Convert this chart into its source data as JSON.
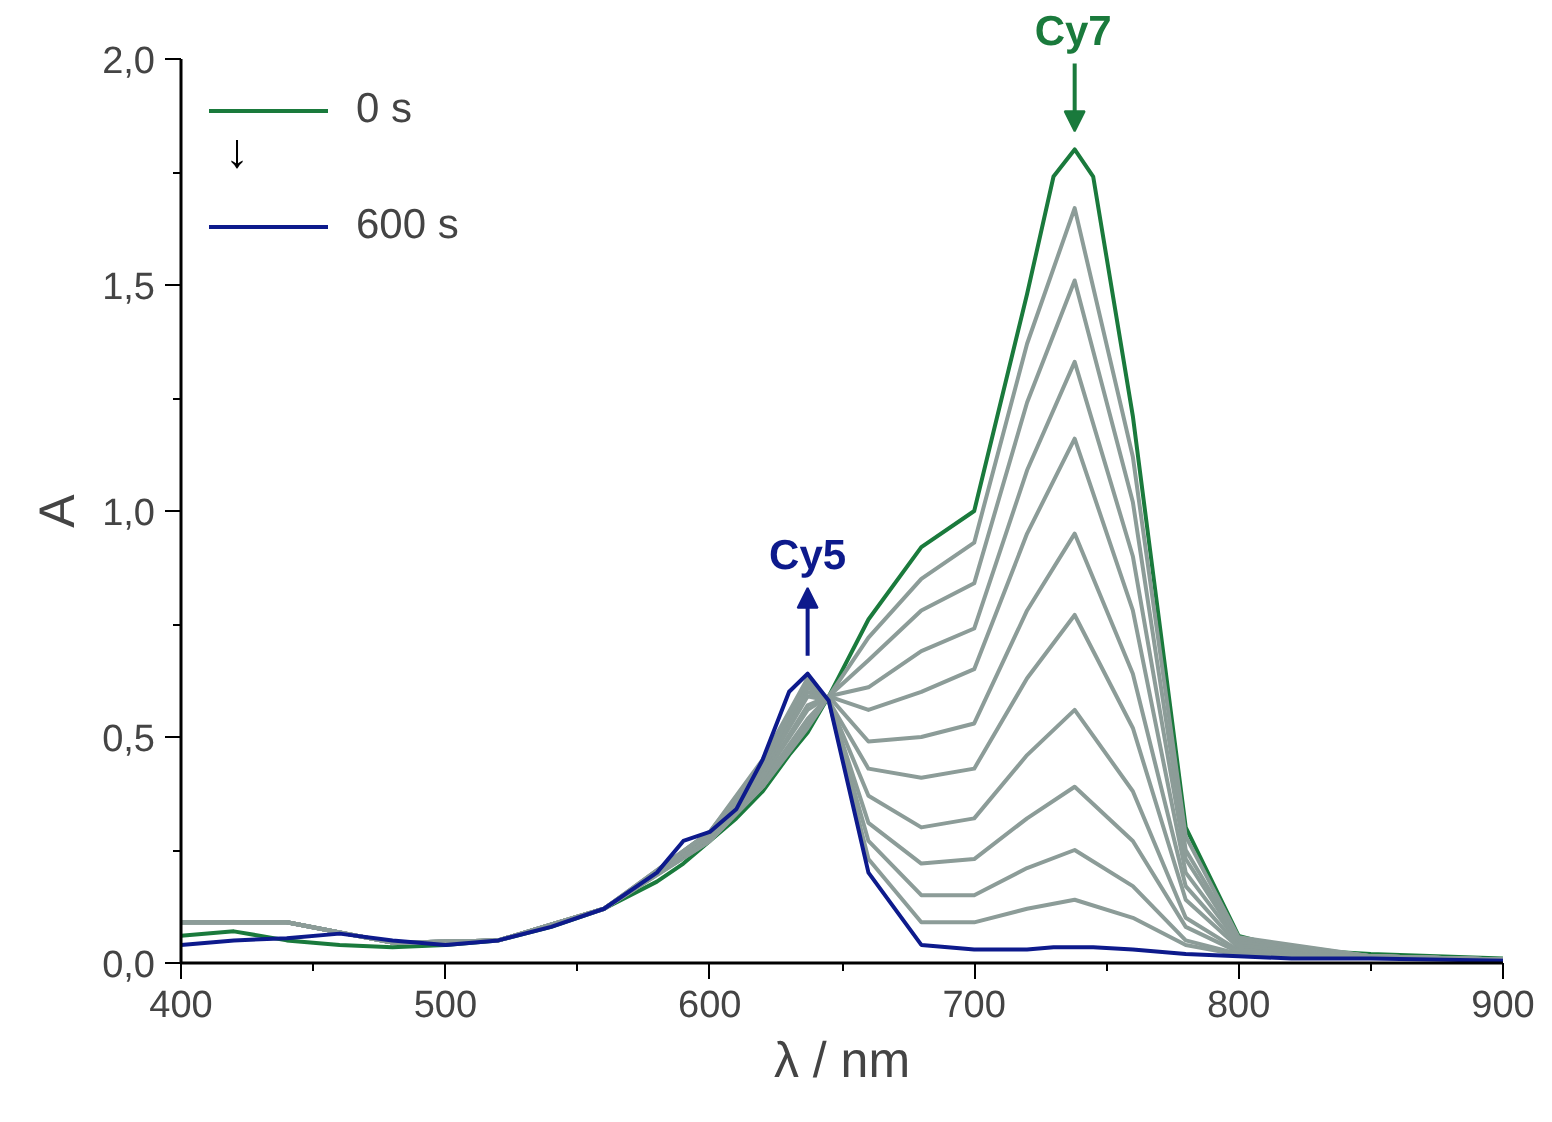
{
  "chart_data": {
    "type": "line",
    "xlabel": "λ / nm",
    "ylabel": "A",
    "xlim": [
      400,
      900
    ],
    "ylim": [
      0,
      2.0
    ],
    "xticks": [
      400,
      {
        "value": 450,
        "label": null
      },
      500,
      {
        "value": 550,
        "label": null
      },
      600,
      {
        "value": 650,
        "label": null
      },
      700,
      {
        "value": 750,
        "label": null
      },
      800,
      {
        "value": 850,
        "label": null
      },
      900
    ],
    "yticks": [
      {
        "value": 0,
        "label": "0,0"
      },
      {
        "value": 0.25,
        "label": null
      },
      {
        "value": 0.5,
        "label": "0,5"
      },
      {
        "value": 0.75,
        "label": null
      },
      {
        "value": 1.0,
        "label": "1,0"
      },
      {
        "value": 1.25,
        "label": null
      },
      {
        "value": 1.5,
        "label": "1,5"
      },
      {
        "value": 1.75,
        "label": null
      },
      {
        "value": 2.0,
        "label": "2,0"
      }
    ],
    "grid": false,
    "legend": "top left",
    "line_style": "solid",
    "marker": "none",
    "annotations": [
      "↓",
      {
        "text": "Cy7",
        "x": 738,
        "y": 1.8
      },
      {
        "text": "Cy5",
        "x": 637,
        "y": 0.64
      }
    ],
    "series": [
      {
        "name": "0 s",
        "color": "#1a7a3c",
        "x": [
          400,
          420,
          440,
          460,
          480,
          500,
          520,
          540,
          560,
          580,
          590,
          600,
          610,
          620,
          630,
          637,
          645,
          660,
          680,
          700,
          720,
          730,
          738,
          745,
          760,
          780,
          800,
          820,
          850,
          900
        ],
        "values": [
          0.06,
          0.07,
          0.05,
          0.04,
          0.035,
          0.04,
          0.05,
          0.08,
          0.12,
          0.18,
          0.22,
          0.27,
          0.32,
          0.38,
          0.46,
          0.51,
          0.59,
          0.76,
          0.92,
          1.0,
          1.48,
          1.74,
          1.8,
          1.74,
          1.21,
          0.3,
          0.06,
          0.03,
          0.02,
          0.01
        ]
      },
      {
        "color": "#8c9c98",
        "x": [
          400,
          440,
          480,
          520,
          560,
          600,
          620,
          637,
          645,
          660,
          680,
          700,
          720,
          738,
          760,
          780,
          800,
          850,
          900
        ],
        "values": [
          0.09,
          0.09,
          0.045,
          0.05,
          0.12,
          0.27,
          0.39,
          0.52,
          0.59,
          0.72,
          0.85,
          0.93,
          1.37,
          1.67,
          1.12,
          0.28,
          0.057,
          0.015,
          0.008
        ]
      },
      {
        "color": "#8c9c98",
        "x": [
          400,
          440,
          480,
          520,
          560,
          600,
          620,
          637,
          645,
          660,
          680,
          700,
          720,
          738,
          760,
          780,
          800,
          850,
          900
        ],
        "values": [
          0.09,
          0.09,
          0.045,
          0.05,
          0.12,
          0.27,
          0.39,
          0.53,
          0.59,
          0.67,
          0.78,
          0.84,
          1.24,
          1.51,
          1.02,
          0.25,
          0.053,
          0.015,
          0.008
        ]
      },
      {
        "color": "#8c9c98",
        "x": [
          400,
          440,
          480,
          520,
          560,
          600,
          620,
          637,
          645,
          660,
          680,
          700,
          720,
          738,
          760,
          780,
          800,
          850,
          900
        ],
        "values": [
          0.09,
          0.09,
          0.045,
          0.05,
          0.12,
          0.28,
          0.4,
          0.54,
          0.59,
          0.61,
          0.69,
          0.74,
          1.09,
          1.33,
          0.9,
          0.23,
          0.048,
          0.015,
          0.008
        ]
      },
      {
        "color": "#8c9c98",
        "x": [
          400,
          440,
          480,
          520,
          560,
          600,
          620,
          637,
          645,
          660,
          680,
          700,
          720,
          738,
          760,
          780,
          800,
          850,
          900
        ],
        "values": [
          0.09,
          0.09,
          0.045,
          0.05,
          0.12,
          0.28,
          0.41,
          0.56,
          0.59,
          0.56,
          0.6,
          0.65,
          0.95,
          1.16,
          0.78,
          0.2,
          0.044,
          0.015,
          0.008
        ]
      },
      {
        "color": "#8c9c98",
        "x": [
          400,
          440,
          480,
          520,
          560,
          600,
          620,
          637,
          645,
          660,
          680,
          700,
          720,
          738,
          760,
          780,
          800,
          850,
          900
        ],
        "values": [
          0.09,
          0.09,
          0.045,
          0.05,
          0.12,
          0.28,
          0.41,
          0.57,
          0.59,
          0.49,
          0.5,
          0.53,
          0.78,
          0.95,
          0.64,
          0.17,
          0.038,
          0.015,
          0.008
        ]
      },
      {
        "color": "#8c9c98",
        "x": [
          400,
          440,
          480,
          520,
          560,
          600,
          620,
          637,
          645,
          660,
          680,
          700,
          720,
          738,
          760,
          780,
          800,
          850,
          900
        ],
        "values": [
          0.09,
          0.09,
          0.045,
          0.05,
          0.12,
          0.28,
          0.42,
          0.59,
          0.58,
          0.43,
          0.41,
          0.43,
          0.63,
          0.77,
          0.52,
          0.14,
          0.034,
          0.015,
          0.008
        ]
      },
      {
        "color": "#8c9c98",
        "x": [
          400,
          440,
          480,
          520,
          560,
          600,
          620,
          637,
          645,
          660,
          680,
          700,
          720,
          738,
          760,
          780,
          800,
          850,
          900
        ],
        "values": [
          0.09,
          0.09,
          0.045,
          0.05,
          0.12,
          0.28,
          0.43,
          0.6,
          0.58,
          0.37,
          0.3,
          0.32,
          0.46,
          0.56,
          0.38,
          0.1,
          0.028,
          0.015,
          0.008
        ]
      },
      {
        "color": "#8c9c98",
        "x": [
          400,
          440,
          480,
          520,
          560,
          600,
          620,
          637,
          645,
          660,
          680,
          700,
          720,
          738,
          760,
          780,
          800,
          850,
          900
        ],
        "values": [
          0.09,
          0.09,
          0.045,
          0.05,
          0.12,
          0.29,
          0.44,
          0.61,
          0.58,
          0.31,
          0.22,
          0.23,
          0.32,
          0.39,
          0.27,
          0.08,
          0.024,
          0.015,
          0.008
        ]
      },
      {
        "color": "#8c9c98",
        "x": [
          400,
          440,
          480,
          520,
          560,
          600,
          620,
          637,
          645,
          660,
          680,
          700,
          720,
          738,
          760,
          780,
          800,
          850,
          900
        ],
        "values": [
          0.09,
          0.09,
          0.045,
          0.05,
          0.12,
          0.29,
          0.44,
          0.62,
          0.58,
          0.27,
          0.15,
          0.15,
          0.21,
          0.25,
          0.17,
          0.05,
          0.02,
          0.015,
          0.008
        ]
      },
      {
        "color": "#8c9c98",
        "x": [
          400,
          440,
          480,
          520,
          560,
          600,
          620,
          637,
          645,
          660,
          680,
          700,
          720,
          738,
          760,
          780,
          800,
          850,
          900
        ],
        "values": [
          0.09,
          0.09,
          0.045,
          0.05,
          0.12,
          0.29,
          0.45,
          0.63,
          0.58,
          0.23,
          0.09,
          0.09,
          0.12,
          0.14,
          0.1,
          0.04,
          0.018,
          0.015,
          0.008
        ]
      },
      {
        "name": "600 s",
        "color": "#0d1a8c",
        "x": [
          400,
          420,
          440,
          460,
          480,
          500,
          520,
          540,
          560,
          580,
          590,
          600,
          610,
          620,
          630,
          637,
          645,
          660,
          680,
          700,
          720,
          730,
          738,
          745,
          760,
          780,
          800,
          820,
          850,
          900
        ],
        "values": [
          0.04,
          0.05,
          0.055,
          0.065,
          0.05,
          0.04,
          0.05,
          0.08,
          0.12,
          0.2,
          0.27,
          0.29,
          0.34,
          0.45,
          0.6,
          0.64,
          0.58,
          0.2,
          0.04,
          0.03,
          0.03,
          0.035,
          0.035,
          0.035,
          0.03,
          0.02,
          0.015,
          0.01,
          0.01,
          0.005
        ]
      }
    ]
  }
}
